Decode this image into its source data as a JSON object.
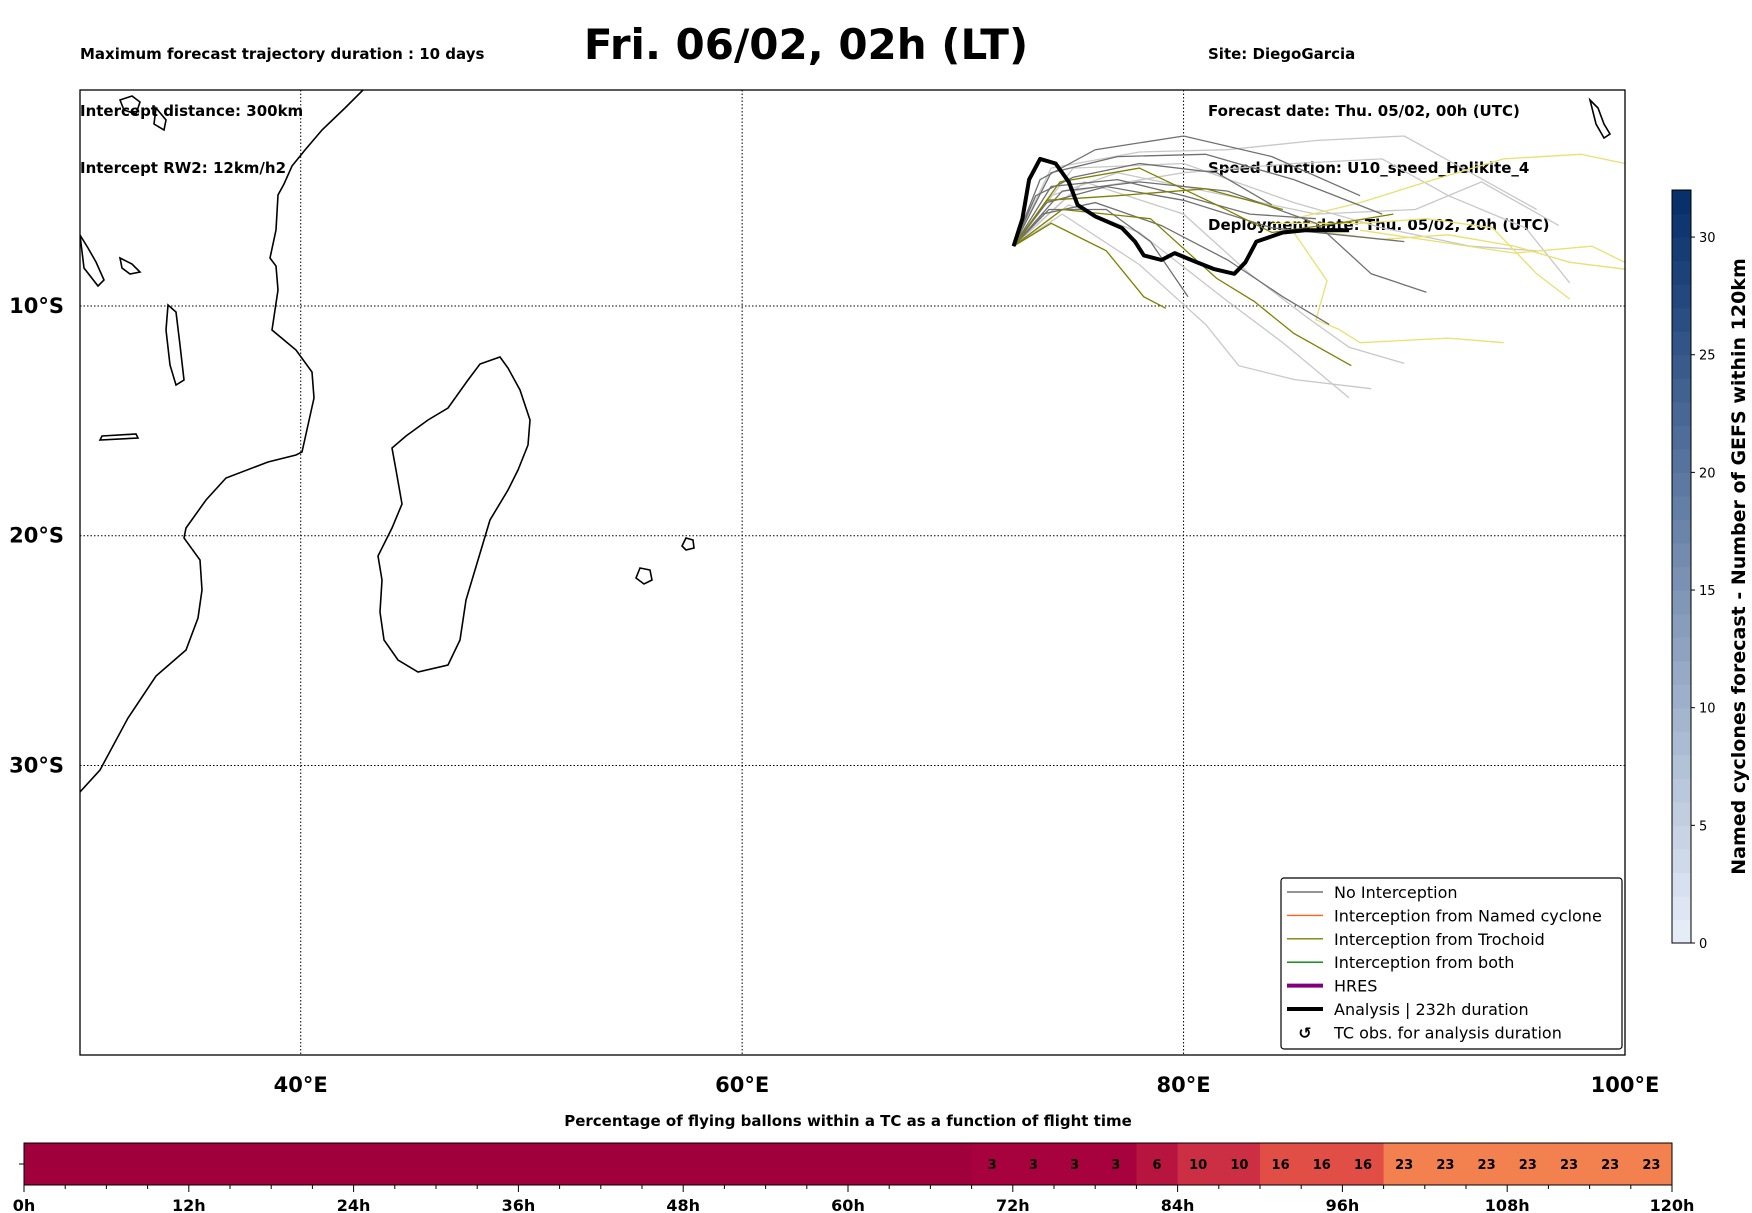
{
  "header": {
    "left_lines": [
      "Maximum forecast trajectory duration : 10 days",
      "Intercept distance: 300km",
      "Intercept RW2: 12km/h2"
    ],
    "title": "Fri. 06/02, 02h (LT)",
    "right_lines": [
      "Site: DiegoGarcia",
      "Forecast date: Thu. 05/02, 00h (UTC)",
      "Speed function: U10_speed_Helikite_4",
      "Deployment date: Thu. 05/02, 20h (UTC)"
    ]
  },
  "chart_data": [
    {
      "type": "map-trajectories",
      "x_ticks": [
        "40°E",
        "60°E",
        "80°E",
        "100°E"
      ],
      "x_tick_values": [
        40,
        60,
        80,
        100
      ],
      "y_ticks": [
        "10°S",
        "20°S",
        "30°S"
      ],
      "y_tick_values": [
        -10,
        -20,
        -30
      ],
      "xlim": [
        30,
        100
      ],
      "ylim": [
        -42.6,
        -0.6
      ],
      "grid": true,
      "legend_position": "bottom-right",
      "legend": [
        {
          "label": "No Interception",
          "color": "#707070",
          "style": "line-thin"
        },
        {
          "label": "Interception from Named cyclone",
          "color": "#ff5f1f",
          "style": "line-thin"
        },
        {
          "label": "Interception from Trochoid",
          "color": "#808000",
          "style": "line-thin"
        },
        {
          "label": "Interception from both",
          "color": "#008000",
          "style": "line-thin"
        },
        {
          "label": "HRES",
          "color": "#800080",
          "style": "line-thick"
        },
        {
          "label": "Analysis | 232h duration",
          "color": "#000000",
          "style": "line-thick"
        },
        {
          "label": "TC obs. for analysis duration",
          "color": "#000000",
          "style": "marker",
          "marker": "↺"
        }
      ],
      "analysis_track": [
        [
          72.3,
          -7.4
        ],
        [
          72.7,
          -6.2
        ],
        [
          73.0,
          -4.5
        ],
        [
          73.5,
          -3.6
        ],
        [
          74.2,
          -3.8
        ],
        [
          74.8,
          -4.6
        ],
        [
          75.2,
          -5.6
        ],
        [
          76.0,
          -6.1
        ],
        [
          77.2,
          -6.6
        ],
        [
          77.8,
          -7.2
        ],
        [
          78.2,
          -7.8
        ],
        [
          79.0,
          -8.0
        ],
        [
          79.6,
          -7.7
        ],
        [
          80.6,
          -8.1
        ],
        [
          81.4,
          -8.4
        ],
        [
          82.3,
          -8.6
        ],
        [
          82.8,
          -8.1
        ],
        [
          83.3,
          -7.2
        ],
        [
          84.5,
          -6.8
        ],
        [
          85.5,
          -6.7
        ],
        [
          87.5,
          -6.7
        ]
      ],
      "no_interception_color": "#707070",
      "trochoid_color": "#808000",
      "light_grey_color": "#c8c8c8",
      "yellow_color": "#e8e070",
      "colorbar": {
        "label": "Named cyclones forecast - Number of GEFS within 120km",
        "ticks": [
          0,
          5,
          10,
          15,
          20,
          25,
          30
        ],
        "range": [
          0,
          32
        ],
        "color_low": "#e4ecf7",
        "color_high": "#08306b"
      }
    },
    {
      "type": "heatmap",
      "title": "Percentage of flying ballons within a TC as a function of flight time",
      "x_tick_labels": [
        "0h",
        "12h",
        "24h",
        "36h",
        "48h",
        "60h",
        "72h",
        "84h",
        "96h",
        "108h",
        "120h"
      ],
      "x_tick_values": [
        0,
        12,
        24,
        36,
        48,
        60,
        72,
        84,
        96,
        108,
        120
      ],
      "xlim": [
        0,
        120
      ],
      "segments": [
        {
          "start": 0,
          "end": 69,
          "value": 0,
          "label": "",
          "color": "#a0003c"
        },
        {
          "start": 69,
          "end": 72,
          "value": 3,
          "label": "3",
          "color": "#a8023e"
        },
        {
          "start": 72,
          "end": 75,
          "value": 3,
          "label": "3",
          "color": "#a8023e"
        },
        {
          "start": 75,
          "end": 78,
          "value": 3,
          "label": "3",
          "color": "#a8023e"
        },
        {
          "start": 78,
          "end": 81,
          "value": 3,
          "label": "3",
          "color": "#a8023e"
        },
        {
          "start": 81,
          "end": 84,
          "value": 6,
          "label": "6",
          "color": "#b81440"
        },
        {
          "start": 84,
          "end": 87,
          "value": 10,
          "label": "10",
          "color": "#cc2e44"
        },
        {
          "start": 87,
          "end": 90,
          "value": 10,
          "label": "10",
          "color": "#cc2e44"
        },
        {
          "start": 90,
          "end": 93,
          "value": 16,
          "label": "16",
          "color": "#e04e45"
        },
        {
          "start": 93,
          "end": 96,
          "value": 16,
          "label": "16",
          "color": "#e04e45"
        },
        {
          "start": 96,
          "end": 99,
          "value": 16,
          "label": "16",
          "color": "#e04e45"
        },
        {
          "start": 99,
          "end": 102,
          "value": 23,
          "label": "23",
          "color": "#f2814f"
        },
        {
          "start": 102,
          "end": 105,
          "value": 23,
          "label": "23",
          "color": "#f2814f"
        },
        {
          "start": 105,
          "end": 108,
          "value": 23,
          "label": "23",
          "color": "#f2814f"
        },
        {
          "start": 108,
          "end": 111,
          "value": 23,
          "label": "23",
          "color": "#f2814f"
        },
        {
          "start": 111,
          "end": 114,
          "value": 23,
          "label": "23",
          "color": "#f2814f"
        },
        {
          "start": 114,
          "end": 117,
          "value": 23,
          "label": "23",
          "color": "#f2814f"
        },
        {
          "start": 117,
          "end": 120,
          "value": 23,
          "label": "23",
          "color": "#f2814f"
        }
      ]
    }
  ]
}
